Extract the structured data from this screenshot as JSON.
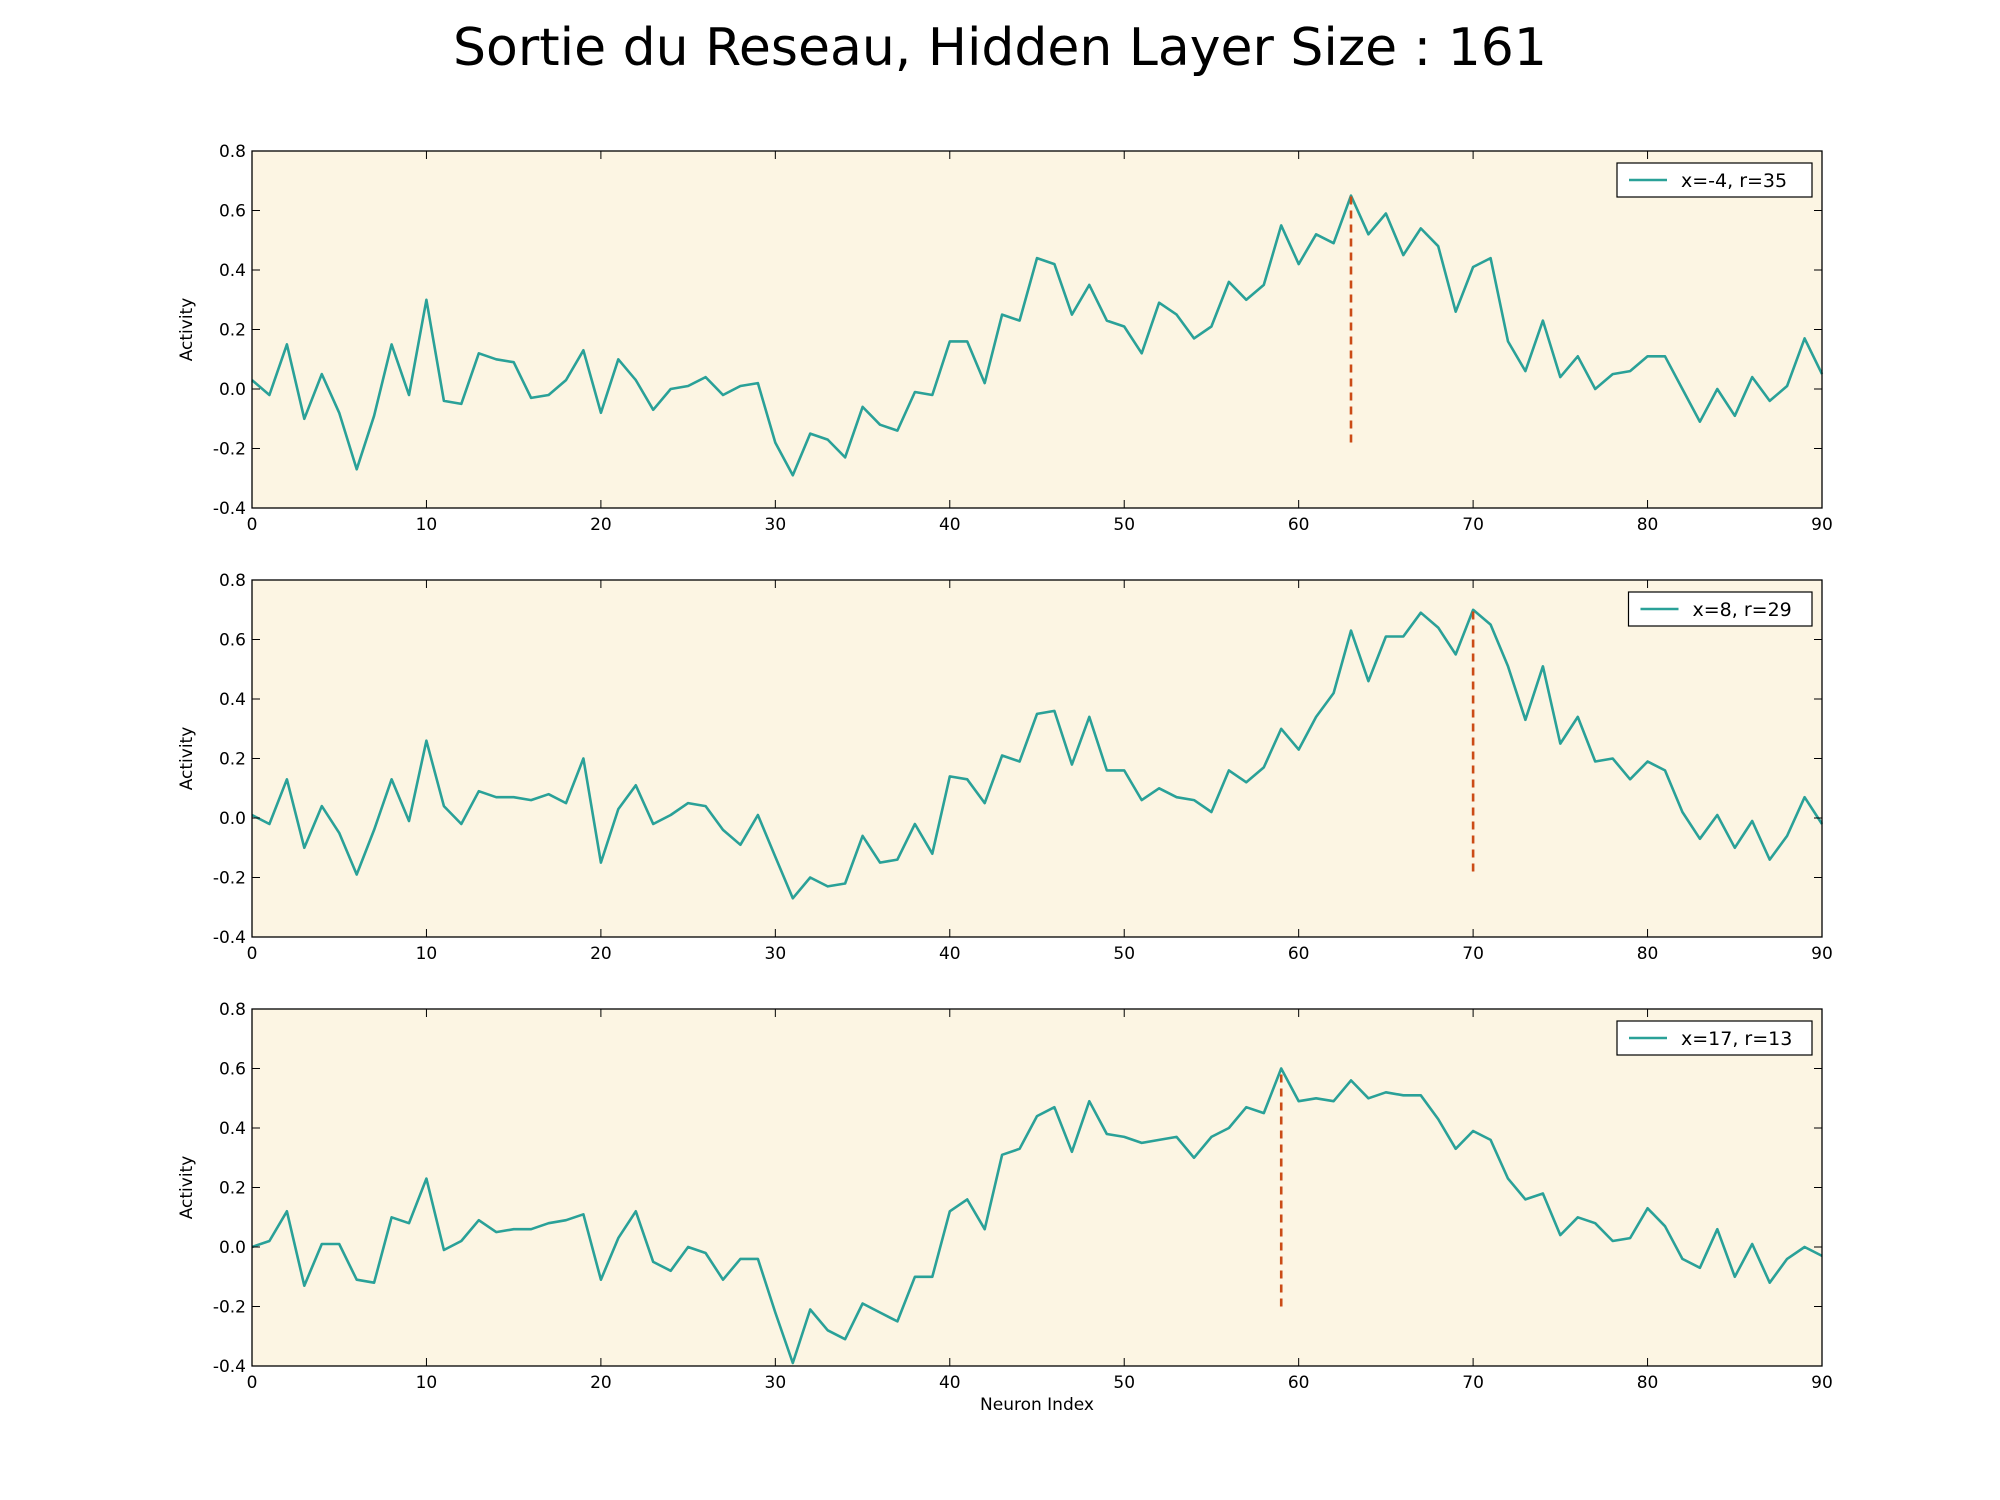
{
  "title": "Sortie du Reseau, Hidden Layer Size : 161",
  "colors": {
    "background": "#fcf5e3",
    "line": "#2aa198",
    "marker": "#cb4b16"
  },
  "chart_data": [
    {
      "type": "line",
      "xlabel": "",
      "ylabel": "Activity",
      "xlim": [
        0,
        90
      ],
      "ylim": [
        -0.4,
        0.8
      ],
      "xticks": [
        0,
        10,
        20,
        30,
        40,
        50,
        60,
        70,
        80,
        90
      ],
      "yticks": [
        -0.4,
        -0.2,
        0.0,
        0.2,
        0.4,
        0.6,
        0.8
      ],
      "legend_position": "top-right",
      "series": [
        {
          "name": "x=-4, r=35",
          "values": [
            0.03,
            -0.02,
            0.15,
            -0.1,
            0.05,
            -0.08,
            -0.27,
            -0.09,
            0.15,
            -0.02,
            0.3,
            -0.04,
            -0.05,
            0.12,
            0.1,
            0.09,
            -0.03,
            -0.02,
            0.03,
            0.13,
            -0.08,
            0.1,
            0.03,
            -0.07,
            0.0,
            0.01,
            0.04,
            -0.02,
            0.01,
            0.02,
            -0.18,
            -0.29,
            -0.15,
            -0.17,
            -0.23,
            -0.06,
            -0.12,
            -0.14,
            -0.01,
            -0.02,
            0.16,
            0.16,
            0.02,
            0.25,
            0.23,
            0.44,
            0.42,
            0.25,
            0.35,
            0.23,
            0.21,
            0.12,
            0.29,
            0.25,
            0.17,
            0.21,
            0.36,
            0.3,
            0.35,
            0.55,
            0.42,
            0.52,
            0.49,
            0.65,
            0.52,
            0.59,
            0.45,
            0.54,
            0.48,
            0.26,
            0.41,
            0.44,
            0.16,
            0.06,
            0.23,
            0.04,
            0.11,
            0.0,
            0.05,
            0.06,
            0.11,
            0.11,
            0.0,
            -0.11,
            0.0,
            -0.09,
            0.04,
            -0.04,
            0.01,
            0.17,
            0.05
          ]
        }
      ],
      "marker": {
        "x": 63,
        "y_from": -0.18,
        "y_to": 0.65
      }
    },
    {
      "type": "line",
      "xlabel": "",
      "ylabel": "Activity",
      "xlim": [
        0,
        90
      ],
      "ylim": [
        -0.4,
        0.8
      ],
      "xticks": [
        0,
        10,
        20,
        30,
        40,
        50,
        60,
        70,
        80,
        90
      ],
      "yticks": [
        -0.4,
        -0.2,
        0.0,
        0.2,
        0.4,
        0.6,
        0.8
      ],
      "legend_position": "top-right",
      "series": [
        {
          "name": "x=8, r=29",
          "values": [
            0.01,
            -0.02,
            0.13,
            -0.1,
            0.04,
            -0.05,
            -0.19,
            -0.04,
            0.13,
            -0.01,
            0.26,
            0.04,
            -0.02,
            0.09,
            0.07,
            0.07,
            0.06,
            0.08,
            0.05,
            0.2,
            -0.15,
            0.03,
            0.11,
            -0.02,
            0.01,
            0.05,
            0.04,
            -0.04,
            -0.09,
            0.01,
            -0.13,
            -0.27,
            -0.2,
            -0.23,
            -0.22,
            -0.06,
            -0.15,
            -0.14,
            -0.02,
            -0.12,
            0.14,
            0.13,
            0.05,
            0.21,
            0.19,
            0.35,
            0.36,
            0.18,
            0.34,
            0.16,
            0.16,
            0.06,
            0.1,
            0.07,
            0.06,
            0.02,
            0.16,
            0.12,
            0.17,
            0.3,
            0.23,
            0.34,
            0.42,
            0.63,
            0.46,
            0.61,
            0.61,
            0.69,
            0.64,
            0.55,
            0.7,
            0.65,
            0.51,
            0.33,
            0.51,
            0.25,
            0.34,
            0.19,
            0.2,
            0.13,
            0.19,
            0.16,
            0.02,
            -0.07,
            0.01,
            -0.1,
            -0.01,
            -0.14,
            -0.06,
            0.07,
            -0.02
          ]
        }
      ],
      "marker": {
        "x": 70,
        "y_from": -0.18,
        "y_to": 0.7
      }
    },
    {
      "type": "line",
      "xlabel": "Neuron Index",
      "ylabel": "Activity",
      "xlim": [
        0,
        90
      ],
      "ylim": [
        -0.4,
        0.8
      ],
      "xticks": [
        0,
        10,
        20,
        30,
        40,
        50,
        60,
        70,
        80,
        90
      ],
      "yticks": [
        -0.4,
        -0.2,
        0.0,
        0.2,
        0.4,
        0.6,
        0.8
      ],
      "legend_position": "top-right",
      "series": [
        {
          "name": "x=17, r=13",
          "values": [
            0.0,
            0.02,
            0.12,
            -0.13,
            0.01,
            0.01,
            -0.11,
            -0.12,
            0.1,
            0.08,
            0.23,
            -0.01,
            0.02,
            0.09,
            0.05,
            0.06,
            0.06,
            0.08,
            0.09,
            0.11,
            -0.11,
            0.03,
            0.12,
            -0.05,
            -0.08,
            0.0,
            -0.02,
            -0.11,
            -0.04,
            -0.04,
            -0.22,
            -0.39,
            -0.21,
            -0.28,
            -0.31,
            -0.19,
            -0.22,
            -0.25,
            -0.1,
            -0.1,
            0.12,
            0.16,
            0.06,
            0.31,
            0.33,
            0.44,
            0.47,
            0.32,
            0.49,
            0.38,
            0.37,
            0.35,
            0.36,
            0.37,
            0.3,
            0.37,
            0.4,
            0.47,
            0.45,
            0.6,
            0.49,
            0.5,
            0.49,
            0.56,
            0.5,
            0.52,
            0.51,
            0.51,
            0.43,
            0.33,
            0.39,
            0.36,
            0.23,
            0.16,
            0.18,
            0.04,
            0.1,
            0.08,
            0.02,
            0.03,
            0.13,
            0.07,
            -0.04,
            -0.07,
            0.06,
            -0.1,
            0.01,
            -0.12,
            -0.04,
            0.0,
            -0.03
          ]
        }
      ],
      "marker": {
        "x": 59,
        "y_from": -0.2,
        "y_to": 0.6
      }
    }
  ]
}
